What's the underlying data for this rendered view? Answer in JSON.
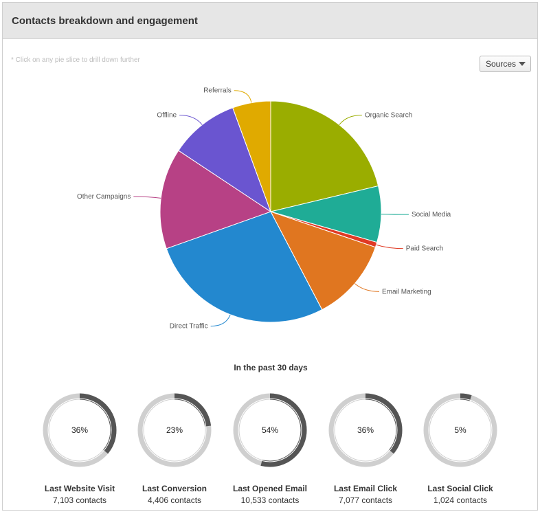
{
  "header": {
    "title": "Contacts breakdown and engagement"
  },
  "hint": "* Click on any pie slice to drill down further",
  "sources_select": {
    "value": "Sources"
  },
  "chart_data": [
    {
      "type": "pie",
      "slices": [
        {
          "label": "Organic Search",
          "value": 20.2,
          "color": "#9aad00"
        },
        {
          "label": "Social Media",
          "value": 7.8,
          "color": "#1fac96"
        },
        {
          "label": "Paid Search",
          "value": 0.7,
          "color": "#e03a24"
        },
        {
          "label": "Email Marketing",
          "value": 11.5,
          "color": "#e07620"
        },
        {
          "label": "Direct Traffic",
          "value": 25.9,
          "color": "#2388cf"
        },
        {
          "label": "Other Campaigns",
          "value": 14.0,
          "color": "#b74185"
        },
        {
          "label": "Offline",
          "value": 9.6,
          "color": "#6a55d0"
        },
        {
          "label": "Referrals",
          "value": 5.3,
          "color": "#e0aa00"
        }
      ]
    }
  ],
  "engagement": {
    "title": "In the past 30 days",
    "items": [
      {
        "label": "Last Website Visit",
        "percent": 36,
        "percent_text": "36%",
        "count": "7,103 contacts"
      },
      {
        "label": "Last Conversion",
        "percent": 23,
        "percent_text": "23%",
        "count": "4,406 contacts"
      },
      {
        "label": "Last Opened Email",
        "percent": 54,
        "percent_text": "54%",
        "count": "10,533 contacts"
      },
      {
        "label": "Last Email Click",
        "percent": 36,
        "percent_text": "36%",
        "count": "7,077 contacts"
      },
      {
        "label": "Last Social Click",
        "percent": 5,
        "percent_text": "5%",
        "count": "1,024 contacts"
      }
    ],
    "colors": {
      "track": "#cfcfcf",
      "fill": "#555555"
    }
  }
}
